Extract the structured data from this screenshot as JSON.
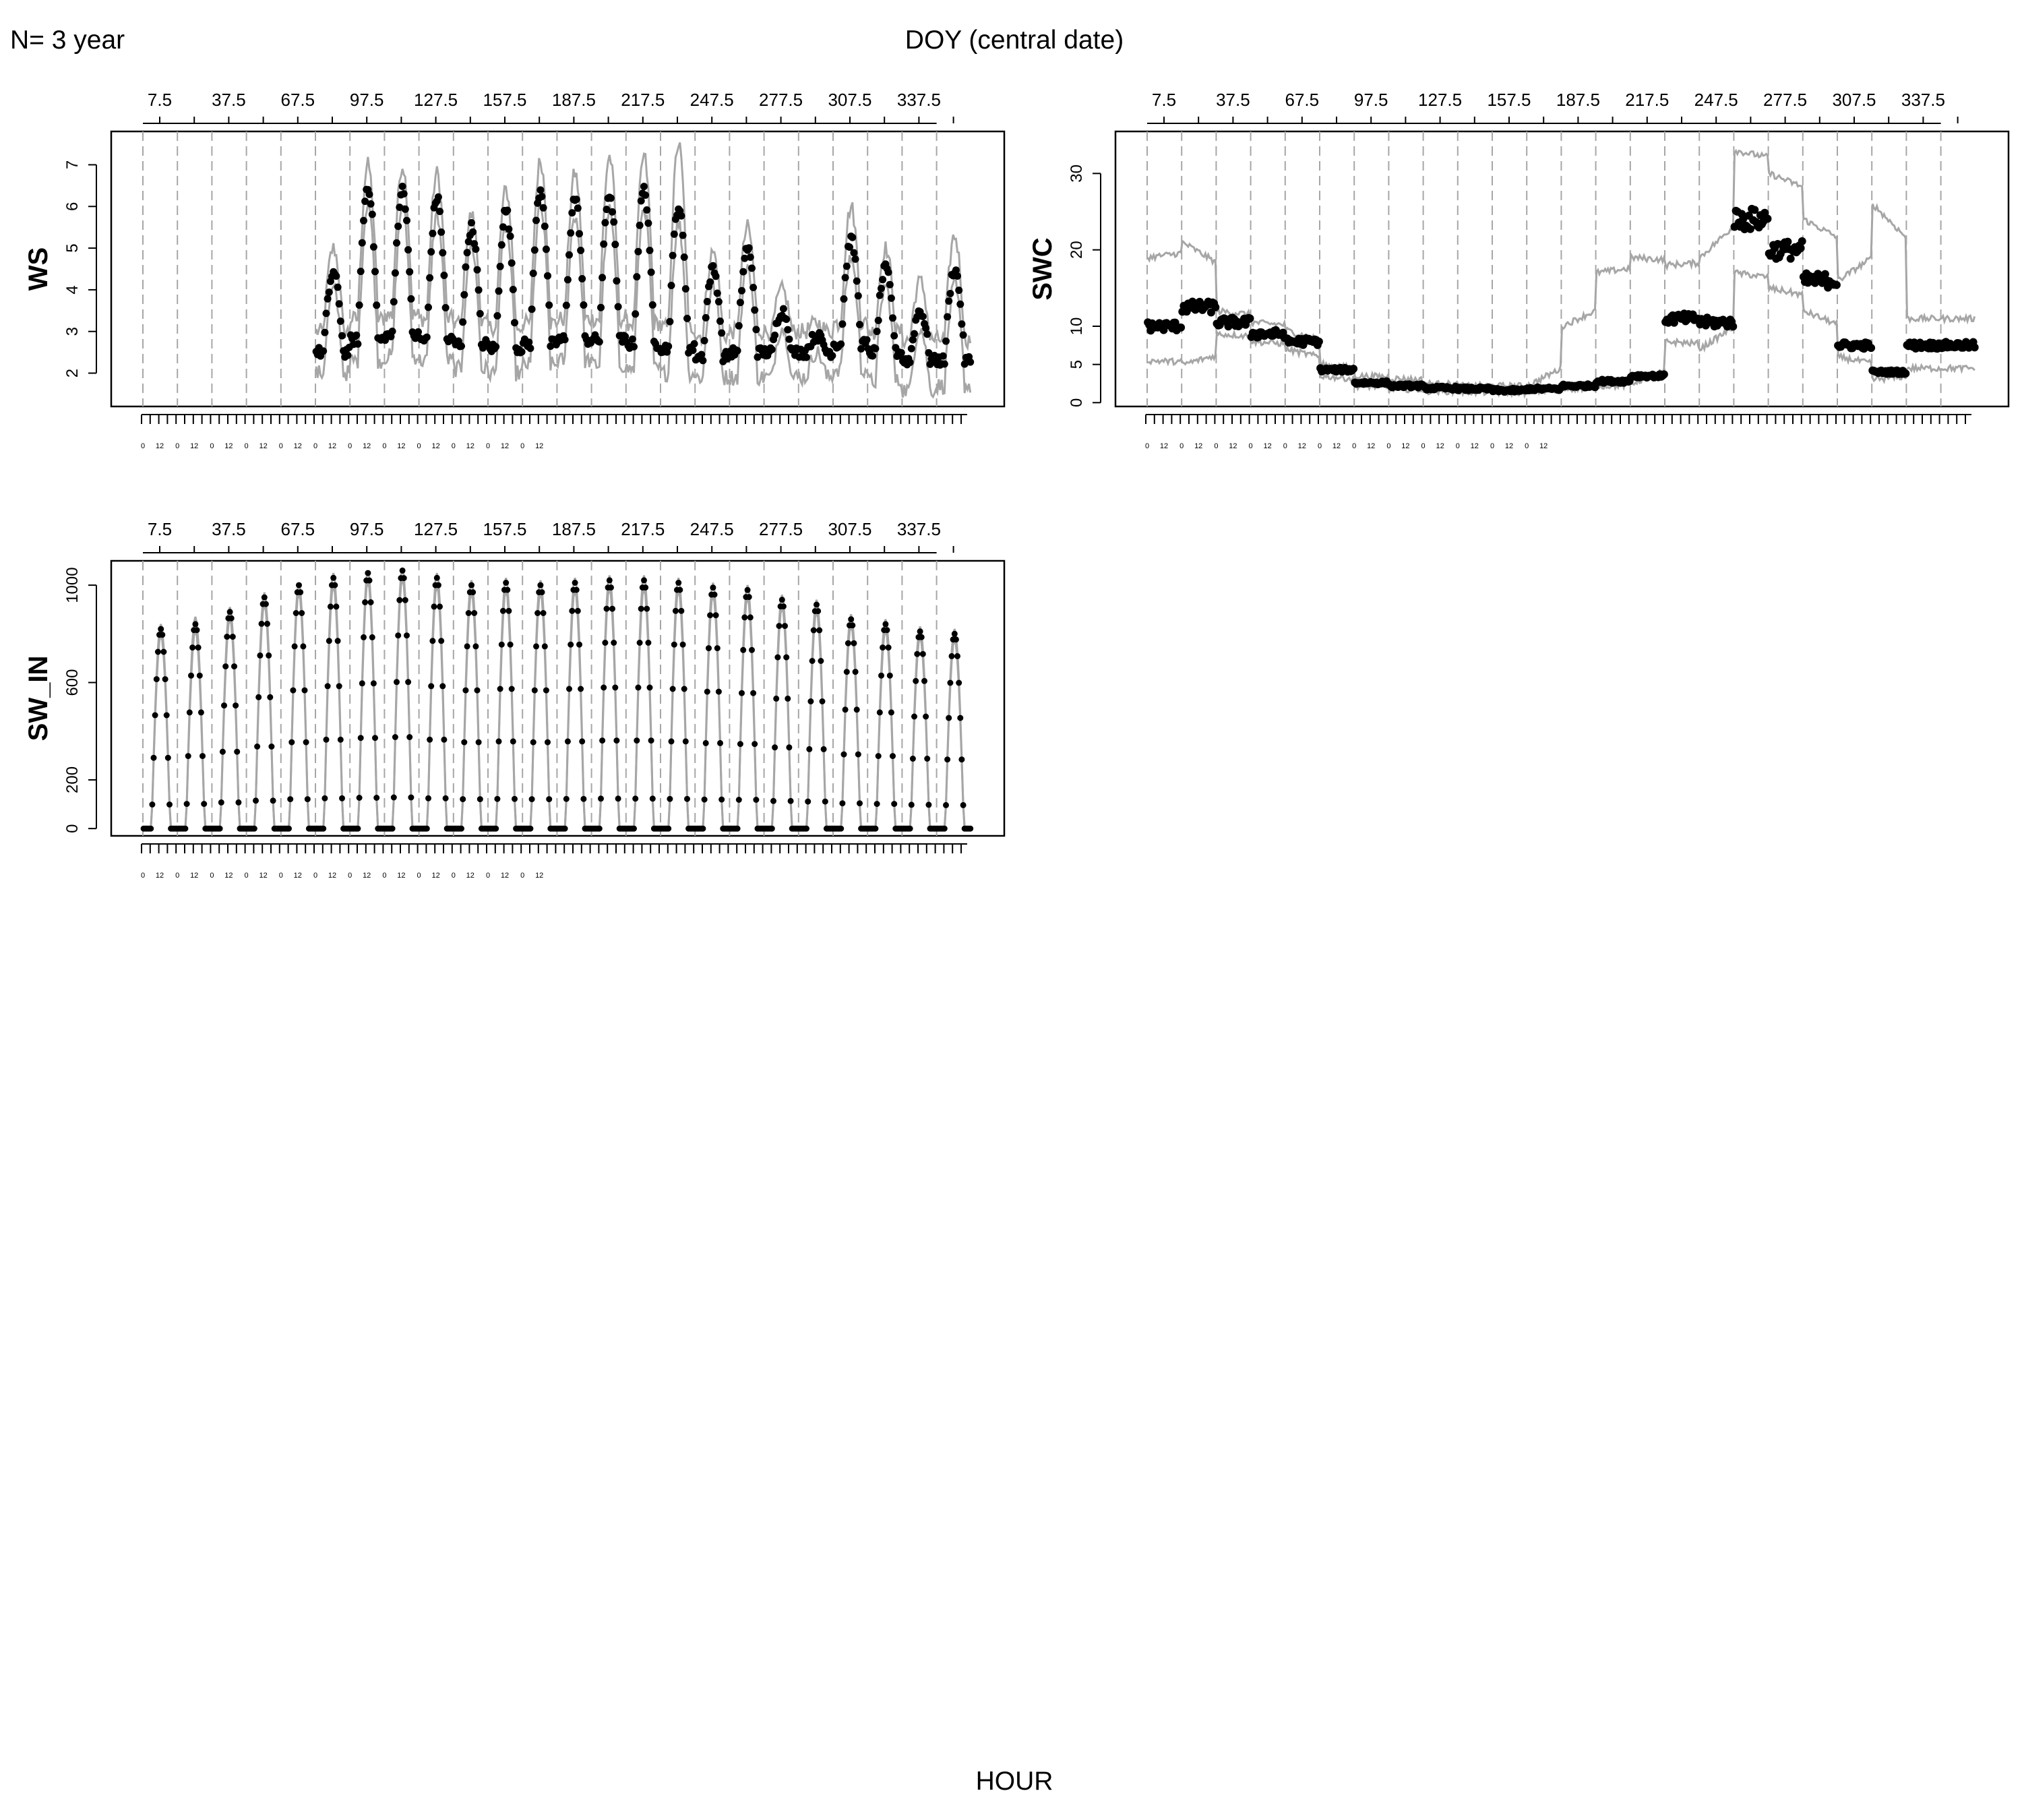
{
  "header": {
    "n_label": "N= 3 year",
    "doy_label": "DOY (central date)",
    "hour_label": "HOUR"
  },
  "colors": {
    "points": "#000000",
    "bands": "#a6a6a6",
    "grid": "#a6a6a6",
    "axis": "#000000"
  },
  "chart_data": [
    {
      "type": "line",
      "ylabel": "WS",
      "ylim": [
        1.2,
        7.8
      ],
      "yticks": [
        2,
        3,
        4,
        5,
        6,
        7
      ],
      "x_top_ticks": [
        "7.5",
        "37.5",
        "67.5",
        "97.5",
        "127.5",
        "157.5",
        "187.5",
        "217.5",
        "247.5",
        "277.5",
        "307.5",
        "337.5"
      ],
      "x_bottom_ticks": [
        "0",
        "12",
        "0",
        "12",
        "0",
        "12",
        "0",
        "12",
        "0",
        "12",
        "0",
        "12",
        "0",
        "12",
        "0",
        "12",
        "0",
        "12",
        "0",
        "12",
        "0",
        "12",
        "0",
        "12"
      ],
      "x_unit": "hour of day within 15-day window",
      "windows_doy": [
        7.5,
        22.5,
        37.5,
        52.5,
        67.5,
        82.5,
        97.5,
        112.5,
        127.5,
        142.5,
        157.5,
        172.5,
        187.5,
        202.5,
        217.5,
        232.5,
        247.5,
        262.5,
        277.5,
        292.5,
        307.5,
        322.5,
        337.5,
        352.5
      ],
      "series": [
        {
          "role": "median",
          "style": "points",
          "window_min": [
            null,
            null,
            null,
            null,
            null,
            2.5,
            2.8,
            2.9,
            2.8,
            2.7,
            2.6,
            2.7,
            2.8,
            2.8,
            2.7,
            2.6,
            2.4,
            2.5,
            2.5,
            2.5,
            2.7,
            2.5,
            2.3,
            2.3
          ],
          "window_max": [
            null,
            null,
            null,
            null,
            null,
            4.4,
            6.5,
            6.4,
            6.2,
            5.5,
            5.9,
            6.4,
            6.2,
            6.3,
            6.4,
            6.0,
            4.5,
            5.0,
            3.5,
            2.9,
            5.2,
            4.5,
            3.5,
            4.5
          ]
        },
        {
          "role": "p5-p95 band",
          "style": "line",
          "window_min": [
            null,
            null,
            null,
            null,
            null,
            2.0,
            2.3,
            2.4,
            2.3,
            2.1,
            2.0,
            2.2,
            2.3,
            2.2,
            2.1,
            2.0,
            1.9,
            1.9,
            1.9,
            1.9,
            2.1,
            1.8,
            1.6,
            1.7
          ],
          "window_max": [
            null,
            null,
            null,
            null,
            null,
            5.0,
            7.0,
            7.0,
            6.8,
            5.8,
            6.4,
            7.1,
            6.8,
            7.2,
            7.2,
            7.5,
            4.9,
            5.5,
            4.0,
            3.2,
            6.0,
            5.0,
            4.2,
            5.3
          ]
        }
      ]
    },
    {
      "type": "line",
      "ylabel": "SWC",
      "ylim": [
        -0.5,
        35.5
      ],
      "yticks": [
        0,
        5,
        10,
        20,
        30
      ],
      "x_top_ticks": [
        "7.5",
        "37.5",
        "67.5",
        "97.5",
        "127.5",
        "157.5",
        "187.5",
        "217.5",
        "247.5",
        "277.5",
        "307.5",
        "337.5"
      ],
      "x_bottom_ticks": [
        "0",
        "12",
        "0",
        "12",
        "0",
        "12",
        "0",
        "12",
        "0",
        "12",
        "0",
        "12",
        "0",
        "12",
        "0",
        "12",
        "0",
        "12",
        "0",
        "12",
        "0",
        "12",
        "0",
        "12"
      ],
      "windows_doy": [
        7.5,
        22.5,
        37.5,
        52.5,
        67.5,
        82.5,
        97.5,
        112.5,
        127.5,
        142.5,
        157.5,
        172.5,
        187.5,
        202.5,
        217.5,
        232.5,
        247.5,
        262.5,
        277.5,
        292.5,
        307.5,
        322.5,
        337.5,
        352.5
      ],
      "series": [
        {
          "role": "median",
          "style": "points",
          "values": [
            10,
            12.5,
            10.5,
            9,
            8,
            4.3,
            2.6,
            2.2,
            1.9,
            1.8,
            1.6,
            1.8,
            2.2,
            2.8,
            3.5,
            11,
            10.5,
            24,
            20,
            16,
            7.5,
            4,
            7.5,
            7.5
          ]
        },
        {
          "role": "upper band",
          "style": "line",
          "values": [
            19,
            21,
            12,
            10.5,
            9.5,
            5,
            3.5,
            3.2,
            2.5,
            2.2,
            2.2,
            2.2,
            10,
            17,
            19,
            18,
            19,
            33,
            30,
            24,
            16,
            26,
            11,
            11
          ]
        },
        {
          "role": "lower band",
          "style": "line",
          "values": [
            5.5,
            5,
            9,
            8,
            7,
            3.5,
            2.2,
            1.8,
            1.5,
            1.4,
            1.3,
            1.5,
            1.8,
            2.2,
            2.5,
            8,
            7,
            17,
            15,
            12,
            6,
            3,
            4.5,
            4.5
          ]
        }
      ]
    },
    {
      "type": "line",
      "ylabel": "SW_IN",
      "ylim": [
        -30,
        1100
      ],
      "yticks": [
        0,
        200,
        600,
        1000
      ],
      "x_top_ticks": [
        "7.5",
        "37.5",
        "67.5",
        "97.5",
        "127.5",
        "157.5",
        "187.5",
        "217.5",
        "247.5",
        "277.5",
        "307.5",
        "337.5"
      ],
      "x_bottom_ticks": [
        "0",
        "12",
        "0",
        "12",
        "0",
        "12",
        "0",
        "12",
        "0",
        "12",
        "0",
        "12",
        "0",
        "12",
        "0",
        "12",
        "0",
        "12",
        "0",
        "12",
        "0",
        "12",
        "0",
        "12"
      ],
      "windows_doy": [
        7.5,
        22.5,
        37.5,
        52.5,
        67.5,
        82.5,
        97.5,
        112.5,
        127.5,
        142.5,
        157.5,
        172.5,
        187.5,
        202.5,
        217.5,
        232.5,
        247.5,
        262.5,
        277.5,
        292.5,
        307.5,
        322.5,
        337.5,
        352.5
      ],
      "series": [
        {
          "role": "median",
          "style": "points",
          "peak_values": [
            820,
            840,
            890,
            950,
            1000,
            1030,
            1050,
            1060,
            1030,
            1000,
            1010,
            1000,
            1010,
            1020,
            1020,
            1010,
            990,
            980,
            940,
            920,
            860,
            840,
            810,
            800
          ]
        },
        {
          "role": "band",
          "style": "line",
          "peak_values": [
            840,
            870,
            910,
            970,
            1010,
            1050,
            1060,
            1070,
            1050,
            1020,
            1030,
            1020,
            1030,
            1040,
            1040,
            1030,
            1010,
            1000,
            960,
            940,
            880,
            860,
            830,
            820
          ]
        }
      ]
    }
  ]
}
